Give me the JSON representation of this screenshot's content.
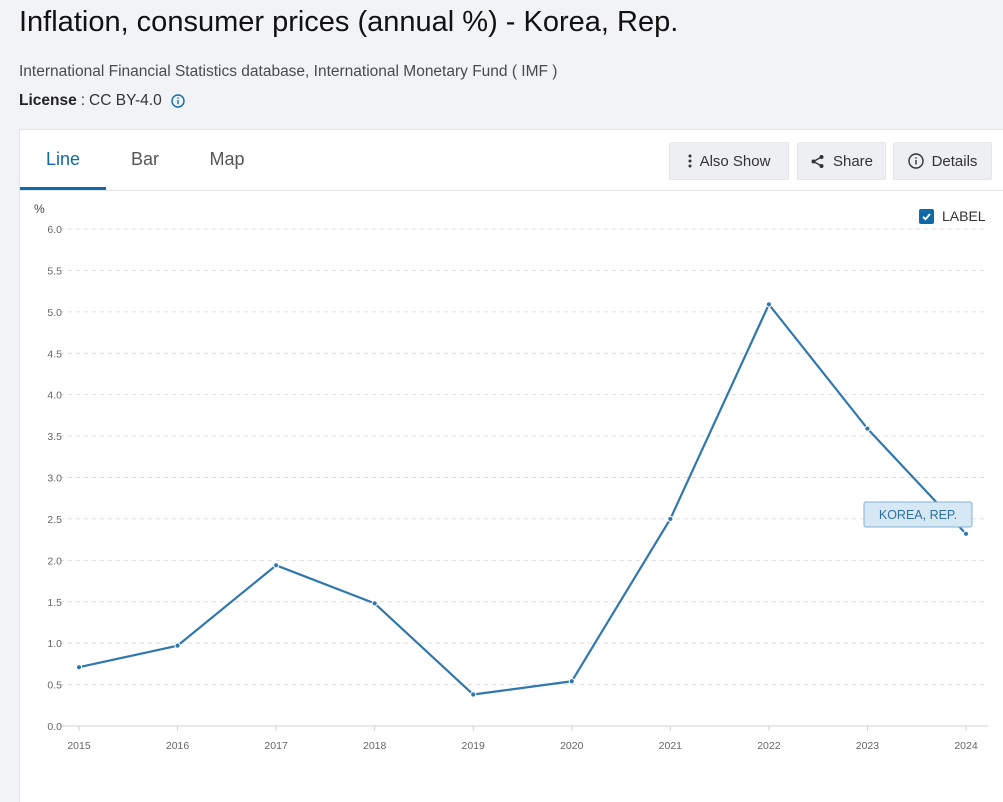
{
  "page": {
    "title": "Inflation, consumer prices (annual %) - Korea, Rep.",
    "source": "International Financial Statistics database, International Monetary Fund ( IMF )",
    "license_label": "License",
    "license_sep": ":",
    "license_value": "CC BY-4.0"
  },
  "tabs": [
    {
      "label": "Line",
      "active": true
    },
    {
      "label": "Bar",
      "active": false
    },
    {
      "label": "Map",
      "active": false
    }
  ],
  "toolbar": {
    "also_show": "Also Show",
    "share": "Share",
    "details": "Details"
  },
  "label_toggle": {
    "text": "LABEL",
    "checked": true
  },
  "colors": {
    "accent": "#0f6aa6",
    "line": "#2f77ad",
    "grid": "#d9dde2",
    "label_bg": "#d7e8f5",
    "label_border": "#7fb0d4"
  },
  "chart_data": {
    "type": "line",
    "ylabel": "%",
    "ylim": [
      0,
      6
    ],
    "yticks": [
      "0.0",
      "0.5",
      "1.0",
      "1.5",
      "2.0",
      "2.5",
      "3.0",
      "3.5",
      "4.0",
      "4.5",
      "5.0",
      "5.5",
      "6.0"
    ],
    "categories": [
      "2015",
      "2016",
      "2017",
      "2018",
      "2019",
      "2020",
      "2021",
      "2022",
      "2023",
      "2024"
    ],
    "series": [
      {
        "name": "KOREA, REP.",
        "values": [
          0.71,
          0.97,
          1.94,
          1.48,
          0.38,
          0.54,
          2.5,
          5.09,
          3.59,
          2.32
        ]
      }
    ],
    "grid": true
  }
}
